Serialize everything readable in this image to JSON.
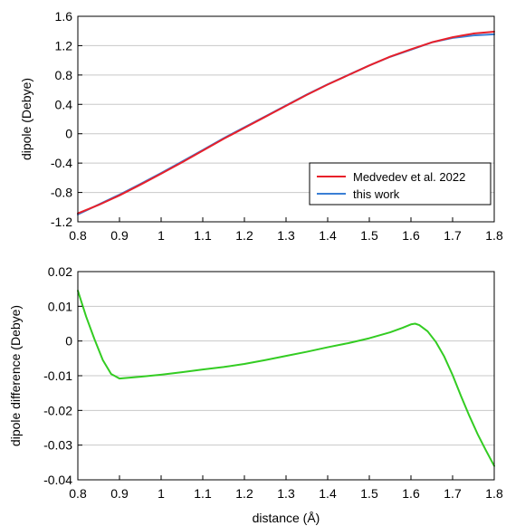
{
  "chart_data": [
    {
      "type": "line",
      "title": "",
      "xlabel": "",
      "ylabel": "dipole (Debye)",
      "xlim": [
        0.8,
        1.8
      ],
      "ylim": [
        -1.2,
        1.6
      ],
      "xticks": [
        "0.8",
        "0.9",
        "1",
        "1.1",
        "1.2",
        "1.3",
        "1.4",
        "1.5",
        "1.6",
        "1.7",
        "1.8"
      ],
      "yticks": [
        "1.6",
        "1.2",
        "0.8",
        "0.4",
        "0",
        "-0.4",
        "-0.8",
        "-1.2"
      ],
      "grid": "horizontal",
      "legend_position": "bottom-right",
      "series": [
        {
          "name": "Medvedev et al. 2022",
          "color": "#e8202a",
          "x": [
            0.8,
            0.85,
            0.9,
            0.95,
            1.0,
            1.05,
            1.1,
            1.15,
            1.2,
            1.25,
            1.3,
            1.35,
            1.4,
            1.45,
            1.5,
            1.55,
            1.6,
            1.65,
            1.7,
            1.75,
            1.8
          ],
          "y": [
            -1.085,
            -0.97,
            -0.84,
            -0.695,
            -0.545,
            -0.39,
            -0.23,
            -0.07,
            0.08,
            0.23,
            0.38,
            0.53,
            0.67,
            0.8,
            0.93,
            1.05,
            1.15,
            1.245,
            1.315,
            1.365,
            1.39
          ]
        },
        {
          "name": "this work",
          "color": "#3a7fd5",
          "x": [
            0.8,
            0.85,
            0.9,
            0.95,
            1.0,
            1.05,
            1.1,
            1.15,
            1.2,
            1.25,
            1.3,
            1.35,
            1.4,
            1.45,
            1.5,
            1.55,
            1.6,
            1.65,
            1.7,
            1.75,
            1.8
          ],
          "y": [
            -1.1,
            -0.965,
            -0.83,
            -0.685,
            -0.535,
            -0.38,
            -0.222,
            -0.062,
            0.087,
            0.236,
            0.385,
            0.534,
            0.673,
            0.802,
            0.93,
            1.048,
            1.145,
            1.245,
            1.305,
            1.34,
            1.355
          ]
        }
      ]
    },
    {
      "type": "line",
      "title": "",
      "xlabel": "distance (Å)",
      "ylabel": "dipole difference (Debye)",
      "xlim": [
        0.8,
        1.8
      ],
      "ylim": [
        -0.04,
        0.02
      ],
      "xticks": [
        "0.8",
        "0.9",
        "1",
        "1.1",
        "1.2",
        "1.3",
        "1.4",
        "1.5",
        "1.6",
        "1.7",
        "1.8"
      ],
      "yticks": [
        "0.02",
        "0.01",
        "0",
        "-0.01",
        "-0.02",
        "-0.03",
        "-0.04"
      ],
      "grid": "horizontal",
      "series": [
        {
          "color": "#33cc22",
          "x": [
            0.8,
            0.82,
            0.84,
            0.86,
            0.88,
            0.9,
            0.95,
            1.0,
            1.05,
            1.1,
            1.15,
            1.2,
            1.25,
            1.3,
            1.35,
            1.4,
            1.45,
            1.5,
            1.55,
            1.58,
            1.6,
            1.61,
            1.62,
            1.64,
            1.66,
            1.68,
            1.7,
            1.72,
            1.74,
            1.76,
            1.78,
            1.8
          ],
          "y": [
            0.0145,
            0.007,
            0.0005,
            -0.0055,
            -0.0095,
            -0.0108,
            -0.0103,
            -0.0097,
            -0.009,
            -0.0082,
            -0.0075,
            -0.0066,
            -0.0055,
            -0.0043,
            -0.0031,
            -0.0018,
            -0.0006,
            0.0008,
            0.0025,
            0.0038,
            0.0048,
            0.005,
            0.0046,
            0.0028,
            -0.0003,
            -0.0045,
            -0.0098,
            -0.0158,
            -0.0215,
            -0.0268,
            -0.0315,
            -0.036
          ]
        }
      ]
    }
  ]
}
